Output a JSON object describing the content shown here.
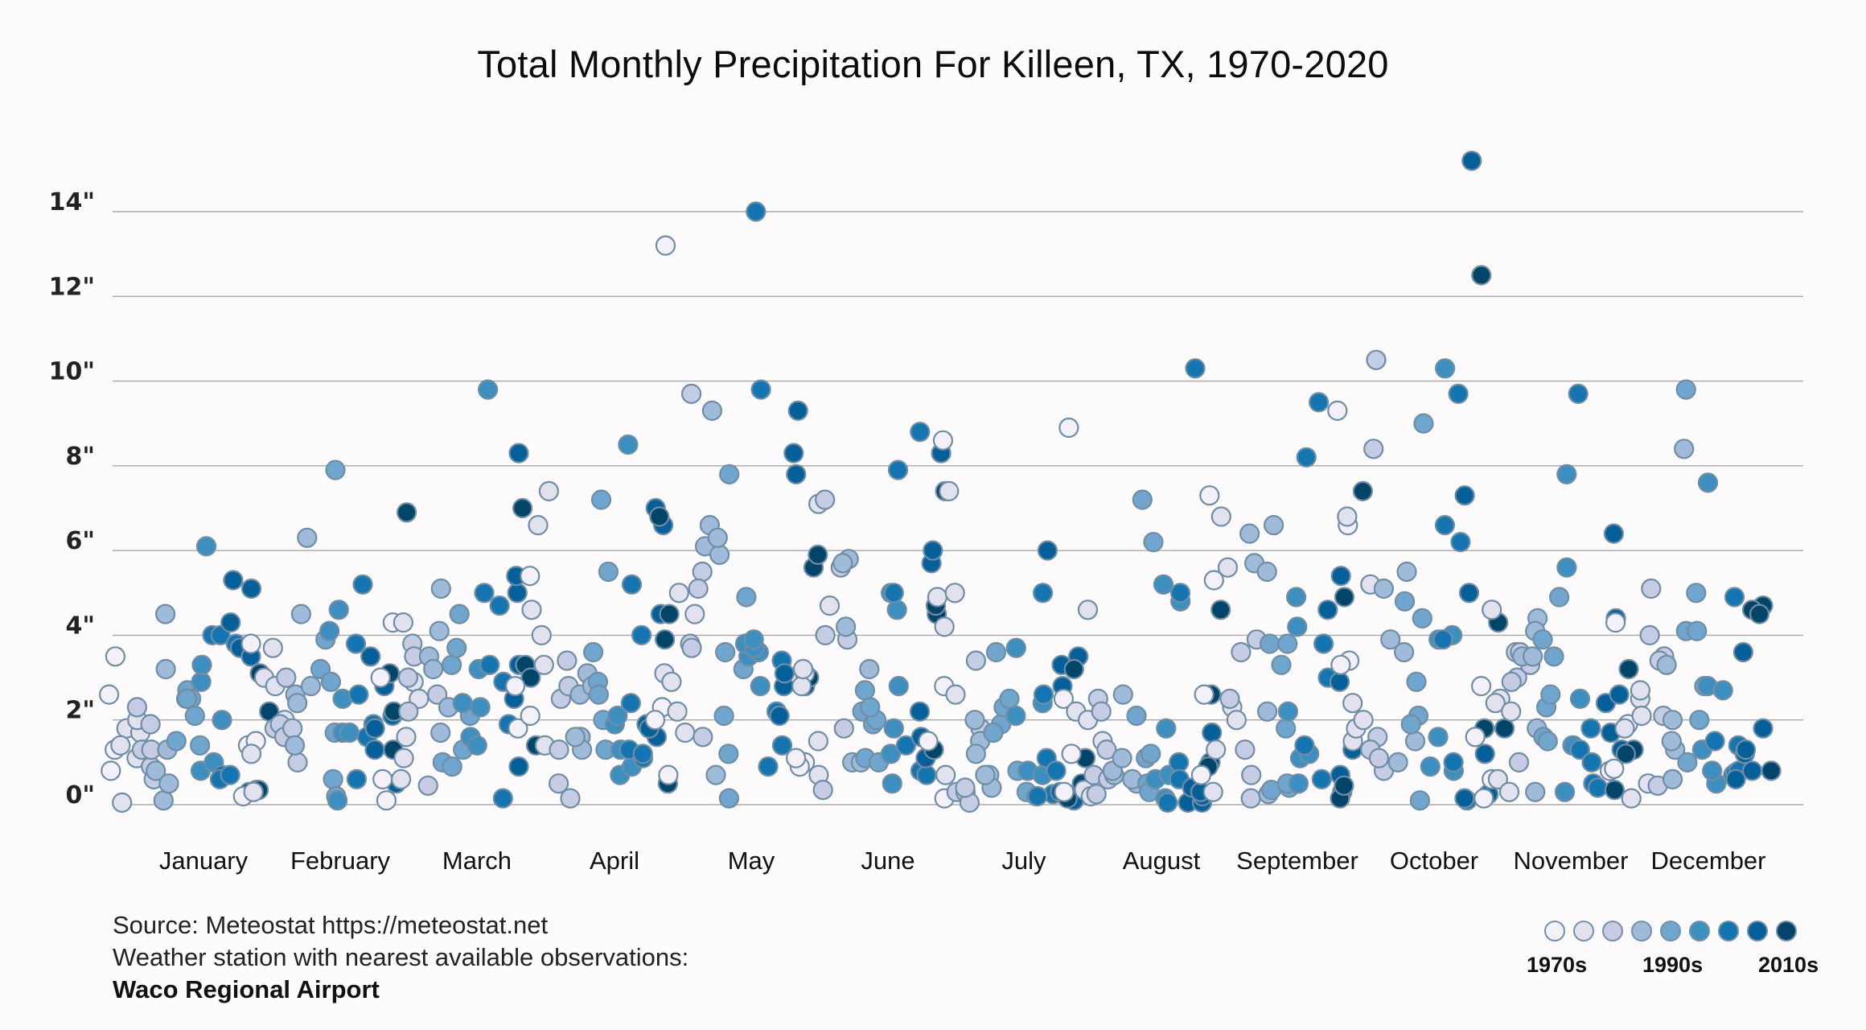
{
  "chart_data": {
    "type": "scatter",
    "title": "Total Monthly Precipitation For Killeen, TX, 1970-2020",
    "xlabel": "",
    "ylabel": "",
    "ylim": [
      0,
      15.3
    ],
    "yticks": [
      0,
      2,
      4,
      6,
      8,
      10,
      12,
      14
    ],
    "ytick_labels": [
      "0\"",
      "2\"",
      "4\"",
      "6\"",
      "8\"",
      "10\"",
      "12\"",
      "14\""
    ],
    "grid": true,
    "categories": [
      "January",
      "February",
      "March",
      "April",
      "May",
      "June",
      "July",
      "August",
      "September",
      "October",
      "November",
      "December"
    ],
    "years": [
      1970,
      2020
    ],
    "color_by": "decade",
    "series": [
      {
        "name": "January",
        "values": [
          0.8,
          3.5,
          2.6,
          1.3,
          0.05,
          1.8,
          1.4,
          1.7,
          2.0,
          1.1,
          2.3,
          1.9,
          0.9,
          1.3,
          0.6,
          1.3,
          0.1,
          0.8,
          1.3,
          0.5,
          4.5,
          3.2,
          2.7,
          2.5,
          1.5,
          2.5,
          1.4,
          2.5,
          2.1,
          0.8,
          6.1,
          2.9,
          3.3,
          2.0,
          1.0,
          4.0,
          0.7,
          4.0,
          0.6,
          3.8,
          0.7,
          5.3,
          4.3,
          5.1,
          3.7,
          0.35,
          3.5,
          0.3,
          3.1,
          0.35,
          2.2
        ]
      },
      {
        "name": "February",
        "values": [
          3.8,
          0.2,
          1.4,
          1.5,
          1.2,
          0.3,
          3.0,
          3.7,
          2.8,
          2.0,
          1.8,
          1.9,
          1.6,
          3.0,
          1.0,
          1.8,
          2.6,
          1.4,
          2.4,
          2.8,
          4.5,
          6.3,
          3.2,
          3.9,
          2.9,
          0.6,
          1.7,
          7.9,
          0.2,
          0.1,
          4.1,
          4.6,
          1.7,
          2.5,
          1.7,
          2.6,
          5.2,
          3.8,
          1.9,
          0.6,
          1.6,
          1.3,
          1.8,
          3.5,
          2.1,
          2.8,
          0.5,
          1.3,
          2.2,
          3.1,
          6.9
        ]
      },
      {
        "name": "March",
        "values": [
          4.3,
          0.6,
          3.0,
          0.1,
          0.6,
          1.1,
          1.6,
          2.9,
          4.3,
          2.5,
          3.0,
          2.2,
          3.8,
          3.5,
          0.45,
          2.6,
          1.7,
          3.5,
          4.1,
          3.2,
          5.1,
          2.3,
          1.0,
          3.3,
          0.9,
          3.7,
          2.1,
          4.5,
          1.3,
          2.4,
          3.2,
          1.6,
          2.3,
          1.4,
          9.8,
          3.3,
          5.0,
          0.15,
          4.7,
          1.9,
          2.9,
          8.3,
          5.0,
          0.9,
          2.5,
          3.3,
          5.4,
          1.4,
          7.0,
          3.3,
          3.0
        ]
      },
      {
        "name": "April",
        "values": [
          1.8,
          2.8,
          2.1,
          5.4,
          4.6,
          6.6,
          7.4,
          3.3,
          1.4,
          4.0,
          2.5,
          1.3,
          0.5,
          0.15,
          2.8,
          3.4,
          1.6,
          1.3,
          1.6,
          2.6,
          3.1,
          2.8,
          2.9,
          3.6,
          1.3,
          7.2,
          5.5,
          2.0,
          2.6,
          1.3,
          1.9,
          0.7,
          2.1,
          8.5,
          0.9,
          1.3,
          2.4,
          1.1,
          1.2,
          5.2,
          4.0,
          1.9,
          4.5,
          1.6,
          1.8,
          6.6,
          7.0,
          6.8,
          4.5,
          0.5,
          3.9
        ]
      },
      {
        "name": "May",
        "values": [
          0.7,
          2.3,
          2.0,
          13.2,
          3.1,
          2.2,
          2.9,
          1.7,
          5.0,
          4.5,
          9.7,
          3.8,
          5.5,
          3.7,
          5.1,
          1.6,
          0.7,
          9.3,
          6.1,
          6.6,
          5.9,
          6.3,
          2.1,
          7.8,
          1.2,
          3.6,
          0.15,
          4.9,
          3.2,
          3.5,
          3.6,
          3.8,
          3.7,
          3.9,
          2.8,
          14.0,
          9.8,
          2.2,
          1.4,
          0.9,
          3.4,
          2.1,
          2.8,
          3.1,
          9.3,
          7.8,
          8.3,
          2.8,
          5.6,
          5.9,
          3.0
        ]
      },
      {
        "name": "June",
        "values": [
          1.0,
          3.1,
          0.9,
          1.1,
          2.8,
          3.2,
          7.1,
          0.7,
          4.7,
          1.5,
          0.35,
          4.0,
          7.2,
          1.8,
          5.6,
          3.9,
          5.8,
          5.7,
          1.0,
          4.2,
          1.0,
          3.2,
          2.7,
          2.2,
          1.1,
          1.9,
          2.0,
          2.3,
          1.0,
          5.0,
          0.5,
          1.2,
          1.8,
          2.8,
          4.6,
          5.0,
          7.9,
          1.4,
          0.8,
          8.8,
          0.7,
          2.2,
          5.7,
          1.1,
          1.6,
          8.3,
          6.0,
          1.3,
          4.5,
          4.7,
          7.4
        ]
      },
      {
        "name": "July",
        "values": [
          1.5,
          0.15,
          2.8,
          8.6,
          4.2,
          4.9,
          7.4,
          0.7,
          2.6,
          5.0,
          0.3,
          0.3,
          0.05,
          0.4,
          3.4,
          1.8,
          1.5,
          2.0,
          1.2,
          0.7,
          0.4,
          0.7,
          1.9,
          1.7,
          3.6,
          2.3,
          2.5,
          0.8,
          0.3,
          0.8,
          3.7,
          2.1,
          0.2,
          2.4,
          0.7,
          2.6,
          5.0,
          0.25,
          0.2,
          1.1,
          0.8,
          6.0,
          2.8,
          0.3,
          3.3,
          3.5,
          0.1,
          0.15,
          0.5,
          1.1,
          3.2
        ]
      },
      {
        "name": "August",
        "values": [
          2.5,
          0.3,
          1.2,
          8.9,
          2.2,
          0.35,
          2.0,
          0.2,
          1.5,
          4.6,
          0.25,
          0.7,
          2.5,
          2.2,
          0.6,
          1.3,
          0.7,
          0.8,
          1.1,
          2.6,
          0.5,
          0.6,
          2.1,
          0.5,
          1.1,
          7.2,
          6.2,
          1.2,
          0.3,
          5.2,
          0.6,
          1.8,
          0.15,
          0.7,
          4.8,
          0.05,
          1.0,
          5.0,
          0.6,
          0.2,
          10.3,
          0.05,
          0.05,
          0.4,
          0.2,
          1.7,
          0.3,
          1.0,
          2.6,
          0.9,
          4.6
        ]
      },
      {
        "name": "September",
        "values": [
          7.3,
          2.6,
          0.7,
          5.3,
          1.3,
          6.8,
          0.3,
          2.3,
          5.6,
          2.0,
          3.6,
          2.5,
          0.7,
          0.15,
          3.9,
          1.3,
          6.4,
          5.7,
          0.25,
          5.5,
          6.6,
          2.2,
          3.8,
          3.3,
          0.35,
          3.8,
          1.8,
          0.4,
          0.5,
          4.9,
          2.2,
          0.5,
          1.1,
          4.2,
          1.2,
          8.2,
          1.4,
          3.0,
          3.8,
          9.5,
          0.6,
          2.9,
          4.6,
          5.4,
          0.3,
          0.7,
          1.3,
          0.15,
          0.45,
          4.9,
          7.4
        ]
      },
      {
        "name": "October",
        "values": [
          3.4,
          6.6,
          9.3,
          3.3,
          6.8,
          2.4,
          5.2,
          1.5,
          1.8,
          2.0,
          8.4,
          1.6,
          1.3,
          10.5,
          0.8,
          1.1,
          3.9,
          5.1,
          1.0,
          3.6,
          5.5,
          1.5,
          4.8,
          0.1,
          2.1,
          4.4,
          1.9,
          2.9,
          9.0,
          0.9,
          3.9,
          1.6,
          10.3,
          4.0,
          0.8,
          3.9,
          6.6,
          9.7,
          1.0,
          0.1,
          6.2,
          0.15,
          7.3,
          5.0,
          1.2,
          0.25,
          15.2,
          12.5,
          1.8,
          4.3,
          1.8
        ]
      },
      {
        "name": "November",
        "values": [
          0.15,
          1.6,
          2.8,
          0.6,
          4.6,
          2.5,
          0.6,
          2.4,
          0.3,
          2.2,
          3.6,
          3.0,
          1.0,
          3.6,
          2.9,
          3.3,
          4.4,
          3.5,
          3.5,
          0.3,
          1.8,
          4.1,
          3.9,
          1.6,
          2.3,
          1.5,
          2.6,
          3.5,
          4.9,
          5.6,
          7.8,
          0.3,
          2.5,
          1.4,
          1.4,
          9.7,
          1.3,
          0.5,
          1.8,
          0.4,
          1.0,
          2.4,
          6.4,
          2.6,
          1.7,
          4.4,
          1.3,
          0.35,
          1.3,
          3.2,
          1.2
        ]
      },
      {
        "name": "December",
        "values": [
          4.3,
          0.8,
          0.85,
          1.9,
          0.15,
          1.8,
          2.5,
          2.1,
          0.5,
          2.7,
          4.0,
          5.1,
          0.45,
          3.5,
          2.1,
          3.4,
          2.0,
          0.6,
          1.3,
          8.4,
          3.3,
          1.5,
          9.8,
          5.0,
          2.0,
          1.0,
          4.1,
          2.8,
          4.1,
          7.6,
          0.5,
          1.3,
          2.8,
          2.7,
          0.8,
          1.5,
          0.7,
          0.75,
          1.4,
          4.9,
          0.8,
          1.2,
          0.6,
          0.8,
          3.6,
          1.3,
          1.8,
          4.7,
          4.6,
          4.5,
          0.8
        ]
      }
    ],
    "legend": {
      "placement": "bottom-right",
      "labels": [
        "1970s",
        "1990s",
        "2010s"
      ],
      "colors": [
        "#f4f0f7",
        "#e2e2ef",
        "#c5cce4",
        "#9fbbd9",
        "#70a6cd",
        "#3d8fc0",
        "#1575b0",
        "#055f98",
        "#034569"
      ]
    }
  },
  "footer": {
    "source_line": "Source: Meteostat https://meteostat.net",
    "station_line": "Weather station with nearest available observations:",
    "station_name": "Waco Regional Airport"
  }
}
